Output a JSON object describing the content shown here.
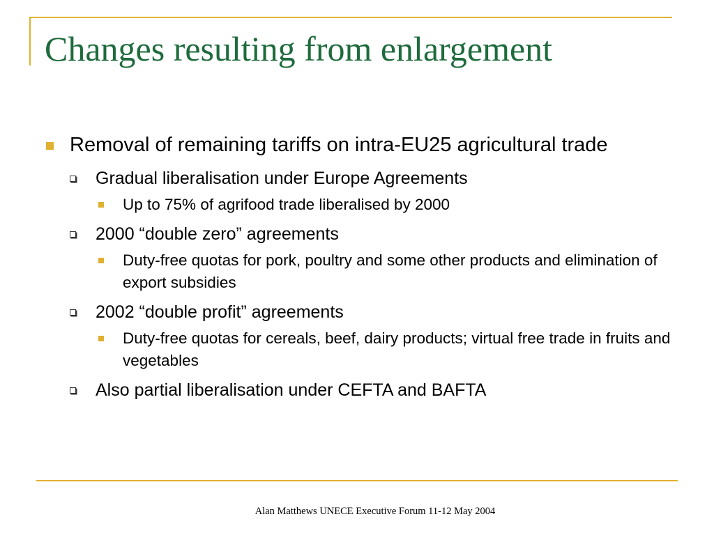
{
  "slide": {
    "title": "Changes resulting from enlargement",
    "bullets": [
      {
        "text": "Removal of remaining tariffs on intra-EU25 agricultural trade",
        "children": [
          {
            "text": "Gradual liberalisation under Europe Agreements",
            "children": [
              {
                "text": "Up to 75% of agrifood trade liberalised by 2000"
              }
            ]
          },
          {
            "text": "2000 “double zero” agreements",
            "children": [
              {
                "text": "Duty-free quotas for pork, poultry and some other products and elimination of export subsidies"
              }
            ]
          },
          {
            "text": "2002 “double profit” agreements",
            "children": [
              {
                "text": "Duty-free quotas for cereals, beef, dairy products; virtual free trade in fruits and vegetables"
              }
            ]
          },
          {
            "text": "Also partial liberalisation under CEFTA and BAFTA"
          }
        ]
      }
    ],
    "footer": "Alan Matthews UNECE Executive Forum 11-12 May 2004"
  },
  "colors": {
    "title": "#1e6b3c",
    "accent": "#e0b030",
    "text": "#000000"
  }
}
